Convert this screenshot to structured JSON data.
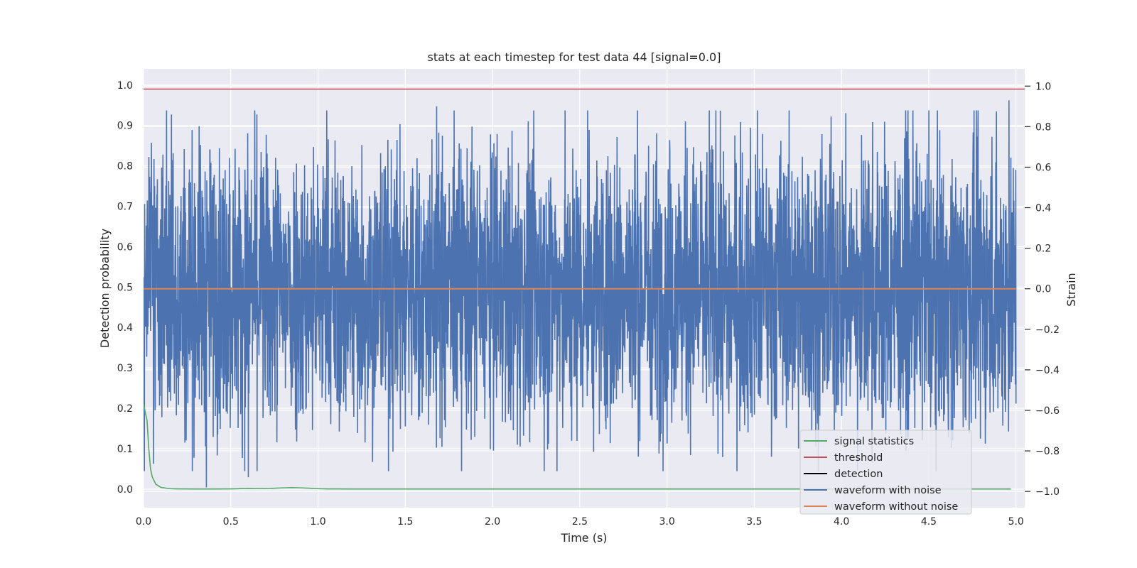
{
  "chart_data": {
    "type": "line",
    "title": "stats at each timestep for test data 44 [signal=0.0]",
    "xlabel": "Time (s)",
    "ylabel_left": "Detection probability",
    "ylabel_right": "Strain",
    "xlim": [
      0.0,
      5.05
    ],
    "ylim_left": [
      -0.046,
      1.04
    ],
    "ylim_right": [
      -1.08,
      1.085
    ],
    "x_ticks": [
      0.0,
      0.5,
      1.0,
      1.5,
      2.0,
      2.5,
      3.0,
      3.5,
      4.0,
      4.5,
      5.0
    ],
    "x_tick_labels": [
      "0.0",
      "0.5",
      "1.0",
      "1.5",
      "2.0",
      "2.5",
      "3.0",
      "3.5",
      "4.0",
      "4.5",
      "5.0"
    ],
    "y_left_ticks": [
      0.0,
      0.1,
      0.2,
      0.3,
      0.4,
      0.5,
      0.6,
      0.7,
      0.8,
      0.9,
      1.0
    ],
    "y_left_tick_labels": [
      "0.0",
      "0.1",
      "0.2",
      "0.3",
      "0.4",
      "0.5",
      "0.6",
      "0.7",
      "0.8",
      "0.9",
      "1.0"
    ],
    "y_right_ticks": [
      -1.0,
      -0.8,
      -0.6,
      -0.4,
      -0.2,
      0.0,
      0.2,
      0.4,
      0.6,
      0.8,
      1.0
    ],
    "y_right_tick_labels": [
      "−1.0",
      "−0.8",
      "−0.6",
      "−0.4",
      "−0.2",
      "0.0",
      "0.2",
      "0.4",
      "0.6",
      "0.8",
      "1.0"
    ],
    "grid": true,
    "legend_position": "lower-right",
    "colors": {
      "background": "#eaeaf2",
      "grid": "#ffffff",
      "signal_statistics": "#55a868",
      "threshold": "#c44e52",
      "detection": "#000000",
      "waveform_with_noise": "#4c72b0",
      "waveform_without_noise": "#dd8452"
    },
    "series": [
      {
        "name": "signal statistics",
        "axis": "left",
        "x": [
          0.0,
          0.02,
          0.03,
          0.04,
          0.05,
          0.07,
          0.1,
          0.15,
          0.2,
          0.3,
          0.4,
          0.5,
          0.6,
          0.7,
          0.75,
          0.8,
          0.85,
          0.9,
          0.95,
          1.0,
          1.05,
          1.2,
          1.5,
          2.0,
          3.0,
          4.0,
          4.97
        ],
        "y": [
          0.21,
          0.17,
          0.1,
          0.05,
          0.03,
          0.012,
          0.004,
          0.001,
          0.0005,
          0.0003,
          0.0003,
          0.0005,
          0.0015,
          0.001,
          0.002,
          0.003,
          0.0035,
          0.003,
          0.002,
          0.001,
          0.0005,
          0.0003,
          0.0002,
          0.0002,
          0.0002,
          0.0002,
          0.0002
        ]
      },
      {
        "name": "threshold",
        "axis": "left",
        "x": [
          0.0,
          5.05
        ],
        "y": [
          0.99,
          0.99
        ]
      },
      {
        "name": "detection",
        "axis": "left",
        "x": [],
        "y": []
      },
      {
        "name": "waveform with noise",
        "axis": "right",
        "x_range": [
          0.0,
          5.0
        ],
        "typical_amplitude": [
          -0.6,
          0.6
        ],
        "peaks": [
          {
            "x": 0.16,
            "y": 0.86
          },
          {
            "x": 0.36,
            "y": -0.98
          },
          {
            "x": 0.6,
            "y": -0.93
          },
          {
            "x": 0.65,
            "y": 0.86
          },
          {
            "x": 1.68,
            "y": 0.9
          },
          {
            "x": 4.96,
            "y": 0.93
          }
        ]
      },
      {
        "name": "waveform without noise",
        "axis": "right",
        "x": [
          0.0,
          5.0
        ],
        "y": [
          0.0,
          0.0
        ]
      }
    ]
  },
  "legend": {
    "items": [
      {
        "label": "signal statistics",
        "color": "#55a868"
      },
      {
        "label": "threshold",
        "color": "#c44e52"
      },
      {
        "label": "detection",
        "color": "#000000"
      },
      {
        "label": "waveform with noise",
        "color": "#4c72b0"
      },
      {
        "label": "waveform without noise",
        "color": "#dd8452"
      }
    ]
  }
}
